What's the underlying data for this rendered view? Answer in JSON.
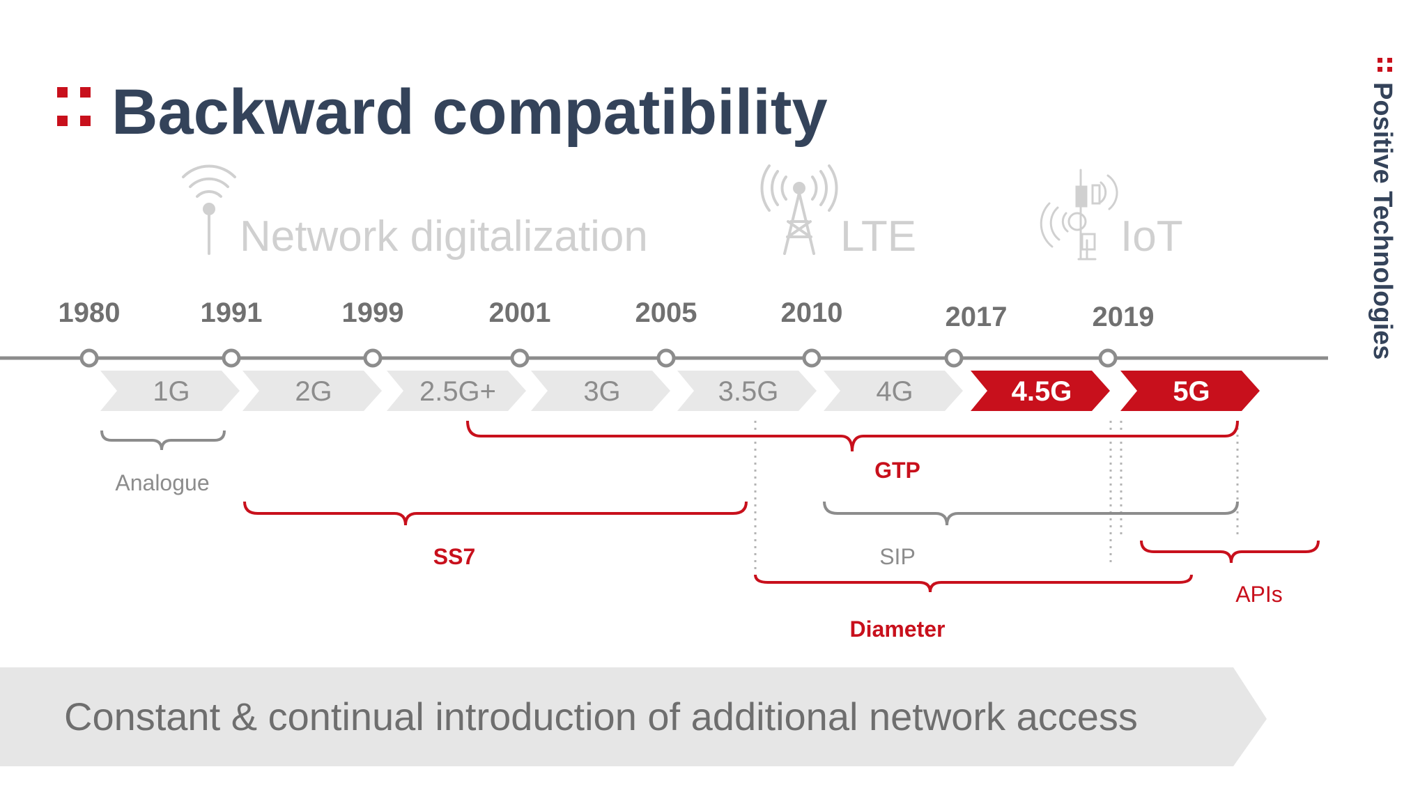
{
  "title": "Backward compatibility",
  "brand": "Positive Technologies",
  "colors": {
    "accent": "#c8101c",
    "title": "#34435a",
    "era_text": "#d0d0d0",
    "year_text": "#707070",
    "chevron_gray": "#e8e8e8",
    "chevron_gray_text": "#8c8c8c",
    "brace_gray": "#8c8c8c",
    "banner": "#e6e6e6",
    "banner_text": "#6e6e6e"
  },
  "eras": [
    {
      "label": "Network digitalization",
      "icon": "wifi-antenna-icon"
    },
    {
      "label": "LTE",
      "icon": "cell-tower-icon"
    },
    {
      "label": "IoT",
      "icon": "iot-tower-icon"
    }
  ],
  "years": [
    "1980",
    "1991",
    "1999",
    "2001",
    "2005",
    "2010",
    "2017",
    "2019"
  ],
  "generations": [
    {
      "label": "1G",
      "highlight": false
    },
    {
      "label": "2G",
      "highlight": false
    },
    {
      "label": "2.5G+",
      "highlight": false
    },
    {
      "label": "3G",
      "highlight": false
    },
    {
      "label": "3.5G",
      "highlight": false
    },
    {
      "label": "4G",
      "highlight": false
    },
    {
      "label": "4.5G",
      "highlight": true
    },
    {
      "label": "5G",
      "highlight": true
    }
  ],
  "protocols": [
    {
      "label": "Analogue",
      "color": "gray",
      "bold": false
    },
    {
      "label": "GTP",
      "color": "red",
      "bold": true
    },
    {
      "label": "SS7",
      "color": "red",
      "bold": true
    },
    {
      "label": "SIP",
      "color": "gray",
      "bold": false
    },
    {
      "label": "APIs",
      "color": "red",
      "bold": false
    },
    {
      "label": "Diameter",
      "color": "red",
      "bold": true
    }
  ],
  "banner_text": "Constant & continual introduction of additional network access"
}
